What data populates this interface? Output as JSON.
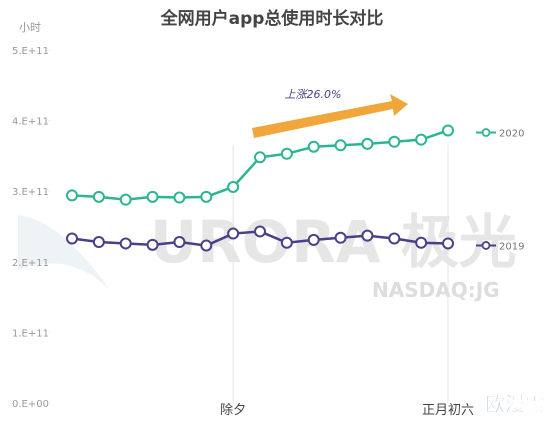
{
  "chart_data": {
    "type": "line",
    "title": "全网用户app总使用时长对比",
    "y_axis_label": "小时",
    "categories": [
      null,
      null,
      null,
      null,
      null,
      null,
      "除夕",
      null,
      null,
      null,
      null,
      null,
      null,
      null,
      "正月初六"
    ],
    "series": [
      {
        "name": "2020",
        "color": "#2bb594",
        "values": [
          294000000000,
          292000000000,
          288000000000,
          292000000000,
          291000000000,
          292000000000,
          306000000000,
          348000000000,
          353000000000,
          363000000000,
          365000000000,
          367000000000,
          370000000000,
          373000000000,
          386000000000
        ]
      },
      {
        "name": "2019",
        "color": "#4b3f87",
        "values": [
          233000000000,
          228000000000,
          226000000000,
          224000000000,
          228000000000,
          223000000000,
          240000000000,
          243000000000,
          227000000000,
          231000000000,
          234000000000,
          237000000000,
          233000000000,
          227000000000,
          226000000000
        ]
      }
    ],
    "ylim": [
      0,
      500000000000
    ],
    "yticks": [
      {
        "value": 0,
        "label": "0.E+00"
      },
      {
        "value": 100000000000,
        "label": "1.E+11"
      },
      {
        "value": 200000000000,
        "label": "2.E+11"
      },
      {
        "value": 300000000000,
        "label": "3.E+11"
      },
      {
        "value": 400000000000,
        "label": "4.E+11"
      },
      {
        "value": 500000000000,
        "label": "5.E+11"
      }
    ],
    "annotation": "上涨26.0%",
    "arrow_color": "#f0a63a",
    "watermark": "URORA 极光",
    "watermark_sub": "NASDAQ:JG",
    "badge": "欧漫露",
    "legend": "right"
  }
}
